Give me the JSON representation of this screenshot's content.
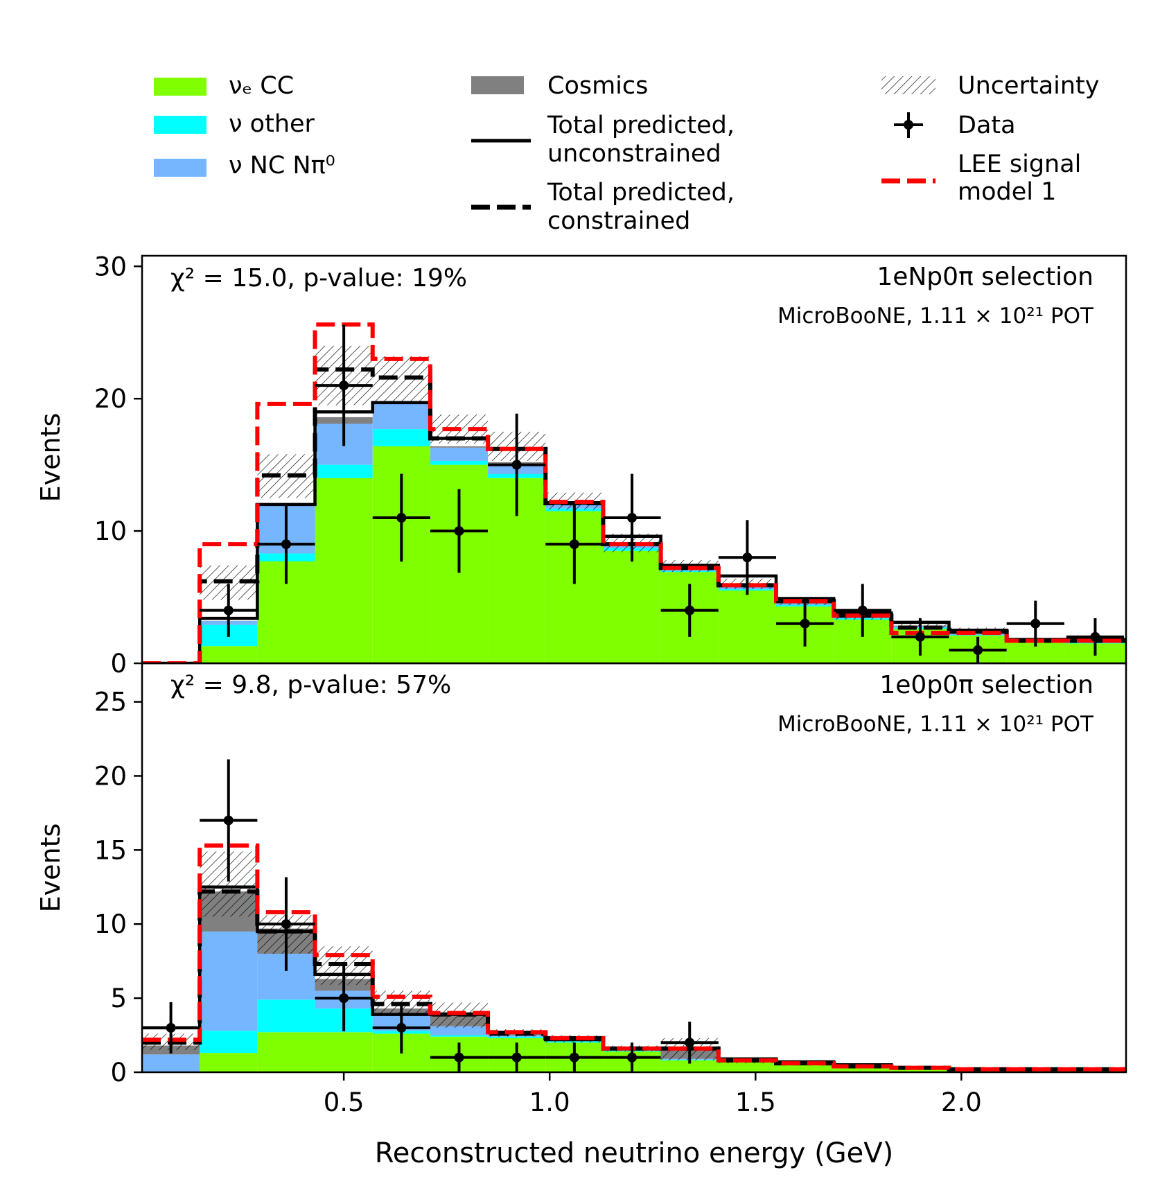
{
  "legend": {
    "items": [
      {
        "key": "nue_cc",
        "label": "νₑ CC",
        "color": "#80ff00",
        "kind": "patch"
      },
      {
        "key": "nu_other",
        "label": "ν other",
        "color": "#00ffff",
        "kind": "patch"
      },
      {
        "key": "nc_pi0",
        "label": "ν NC Nπ⁰",
        "color": "#76b6ff",
        "kind": "patch"
      },
      {
        "key": "cosmics",
        "label": "Cosmics",
        "color": "#808080",
        "kind": "patch"
      },
      {
        "key": "total_unc",
        "label_line1": "Total predicted,",
        "label_line2": "unconstrained",
        "color": "#000000",
        "kind": "line"
      },
      {
        "key": "total_con",
        "label_line1": "Total predicted,",
        "label_line2": "constrained",
        "color": "#000000",
        "kind": "dashed"
      },
      {
        "key": "uncertainty",
        "label": "Uncertainty",
        "kind": "hatch"
      },
      {
        "key": "data",
        "label": "Data",
        "kind": "errorbar"
      },
      {
        "key": "lee",
        "label_line1": "LEE signal",
        "label_line2": "model 1",
        "color": "#ff0000",
        "kind": "dashed"
      }
    ]
  },
  "chart_data": [
    {
      "type": "bar",
      "title": "1eNp0π selection",
      "subtitle": "MicroBooNE, 1.11 × 10²¹ POT",
      "chi2_label": "χ² = 15.0, p-value: 19%",
      "xlabel": "Reconstructed neutrino energy (GeV)",
      "ylabel": "Events",
      "xlim": [
        0.01,
        2.4
      ],
      "ylim": [
        0,
        30.8
      ],
      "yticks": [
        0,
        10,
        20,
        30
      ],
      "bin_edges": [
        0.01,
        0.15,
        0.29,
        0.43,
        0.57,
        0.71,
        0.85,
        0.99,
        1.13,
        1.27,
        1.41,
        1.55,
        1.69,
        1.83,
        1.97,
        2.11,
        2.25,
        2.4
      ],
      "series": [
        {
          "name": "νₑ CC",
          "key": "nue_cc",
          "values": [
            0,
            1.3,
            7.7,
            14.0,
            16.4,
            15.0,
            14.0,
            11.5,
            8.5,
            6.9,
            5.5,
            4.3,
            3.3,
            2.6,
            2.1,
            1.6,
            1.5
          ]
        },
        {
          "name": "ν other",
          "key": "nu_other",
          "values": [
            0,
            1.6,
            0.6,
            1.0,
            1.3,
            0.3,
            0.3,
            0.2,
            0.2,
            0.1,
            0.1,
            0.1,
            0.1,
            0.1,
            0.05,
            0.05,
            0.05
          ]
        },
        {
          "name": "ν NC Nπ⁰",
          "key": "nc_pi0",
          "values": [
            0,
            0.3,
            3.6,
            3.1,
            1.9,
            1.0,
            0.8,
            0.3,
            0.3,
            0.2,
            0.2,
            0.1,
            0.1,
            0.1,
            0.05,
            0.05,
            0.05
          ]
        },
        {
          "name": "Cosmics",
          "key": "cosmics",
          "values": [
            0,
            0,
            0,
            0.5,
            0.1,
            0.1,
            0.1,
            0.1,
            0.1,
            0.05,
            0.05,
            0.05,
            0.05,
            0.05,
            0.05,
            0.05,
            0.05
          ]
        }
      ],
      "total_unconstrained": [
        0,
        3.4,
        12.0,
        19.0,
        19.7,
        17.0,
        16.2,
        12.1,
        9.6,
        7.4,
        6.6,
        4.9,
        3.8,
        3.1,
        2.5,
        1.8,
        1.8
      ],
      "total_constrained": [
        0,
        6.2,
        14.2,
        22.2,
        21.6,
        17.0,
        16.2,
        12.1,
        9.0,
        7.2,
        5.9,
        4.7,
        3.6,
        2.7,
        2.4,
        1.7,
        1.7
      ],
      "uncertainty_low": [
        0,
        4.8,
        12.5,
        19.5,
        19.8,
        16.6,
        15.3,
        11.6,
        8.4,
        6.9,
        5.6,
        4.4,
        3.3,
        2.6,
        2.2,
        1.6,
        1.6
      ],
      "uncertainty_high": [
        0,
        7.4,
        15.8,
        24.0,
        23.2,
        18.8,
        17.5,
        12.9,
        9.8,
        7.8,
        6.4,
        5.0,
        4.0,
        3.1,
        2.7,
        1.9,
        1.9
      ],
      "lee": [
        0,
        9.0,
        19.6,
        25.6,
        23.0,
        17.7,
        16.2,
        12.2,
        9.0,
        7.2,
        5.9,
        4.7,
        3.6,
        2.3,
        2.3,
        1.7,
        1.7
      ],
      "data_x": [
        0.22,
        0.36,
        0.5,
        0.64,
        0.78,
        0.92,
        1.06,
        1.2,
        1.34,
        1.48,
        1.62,
        1.76,
        1.9,
        2.04,
        2.18,
        2.325
      ],
      "data_y": [
        4,
        9,
        21,
        11,
        10,
        15,
        9,
        11,
        4,
        8,
        3,
        4,
        2,
        1,
        3,
        2
      ]
    },
    {
      "type": "bar",
      "title": "1e0p0π selection",
      "subtitle": "MicroBooNE, 1.11 × 10²¹ POT",
      "chi2_label": "χ² = 9.8, p-value: 57%",
      "xlabel": "Reconstructed neutrino energy (GeV)",
      "ylabel": "Events",
      "xlim": [
        0.01,
        2.4
      ],
      "ylim": [
        0,
        27.6
      ],
      "yticks": [
        0,
        5,
        10,
        15,
        20,
        25
      ],
      "xticks": [
        0.5,
        1.0,
        1.5,
        2.0
      ],
      "xtick_labels": [
        "0.5",
        "1.0",
        "1.5",
        "2.0"
      ],
      "bin_edges": [
        0.01,
        0.15,
        0.29,
        0.43,
        0.57,
        0.71,
        0.85,
        0.99,
        1.13,
        1.27,
        1.41,
        1.55,
        1.69,
        1.83,
        1.97,
        2.11,
        2.25,
        2.4
      ],
      "series": [
        {
          "name": "νₑ CC",
          "key": "nue_cc",
          "values": [
            0,
            1.3,
            2.7,
            2.7,
            2.6,
            2.4,
            2.3,
            2.0,
            1.4,
            0.8,
            0.7,
            0.5,
            0.3,
            0.2,
            0.1,
            0.1,
            0.1
          ]
        },
        {
          "name": "ν other",
          "key": "nu_other",
          "values": [
            0,
            1.5,
            2.2,
            1.6,
            0.2,
            0.1,
            0.1,
            0.1,
            0.1,
            0.05,
            0.05,
            0.05,
            0.05,
            0.05,
            0.05,
            0.05,
            0.05
          ]
        },
        {
          "name": "ν NC Nπ⁰",
          "key": "nc_pi0",
          "values": [
            1.2,
            6.7,
            3.1,
            1.2,
            1.1,
            0.6,
            0.1,
            0.1,
            0.05,
            0.05,
            0.05,
            0.05,
            0.05,
            0.05,
            0.05,
            0.05,
            0.05
          ]
        },
        {
          "name": "Cosmics",
          "key": "cosmics",
          "values": [
            0.6,
            2.7,
            1.7,
            0.8,
            0.4,
            0.7,
            0.1,
            0.1,
            0.1,
            0.6,
            0.1,
            0.1,
            0.05,
            0.05,
            0.05,
            0.05,
            0.05
          ]
        }
      ],
      "total_unconstrained": [
        3.0,
        12.5,
        9.5,
        6.6,
        3.9,
        3.9,
        2.7,
        2.2,
        1.6,
        1.6,
        0.9,
        0.7,
        0.5,
        0.3,
        0.2,
        0.2,
        0.2
      ],
      "total_constrained": [
        2.0,
        12.2,
        9.5,
        7.3,
        4.6,
        3.9,
        2.6,
        2.3,
        1.6,
        1.6,
        0.8,
        0.6,
        0.4,
        0.3,
        0.2,
        0.2,
        0.2
      ],
      "uncertainty_low": [
        1.5,
        10.5,
        8.0,
        5.9,
        4.0,
        3.0,
        2.4,
        2.0,
        1.4,
        0.8,
        0.6,
        0.5,
        0.3,
        0.2,
        0.1,
        0.1,
        0.1
      ],
      "uncertainty_high": [
        2.6,
        14.9,
        10.6,
        8.5,
        5.5,
        4.7,
        2.9,
        2.5,
        1.8,
        2.3,
        1.0,
        0.8,
        0.5,
        0.4,
        0.3,
        0.3,
        0.3
      ],
      "lee": [
        2.2,
        15.3,
        10.8,
        7.9,
        5.1,
        4.0,
        2.7,
        2.3,
        1.6,
        1.6,
        0.8,
        0.6,
        0.4,
        0.3,
        0.2,
        0.2,
        0.2
      ],
      "data_x": [
        0.08,
        0.22,
        0.36,
        0.5,
        0.64,
        0.78,
        0.92,
        1.06,
        1.2,
        1.34
      ],
      "data_y": [
        3,
        17,
        10,
        5,
        3,
        1,
        1,
        1,
        1,
        2
      ]
    }
  ]
}
